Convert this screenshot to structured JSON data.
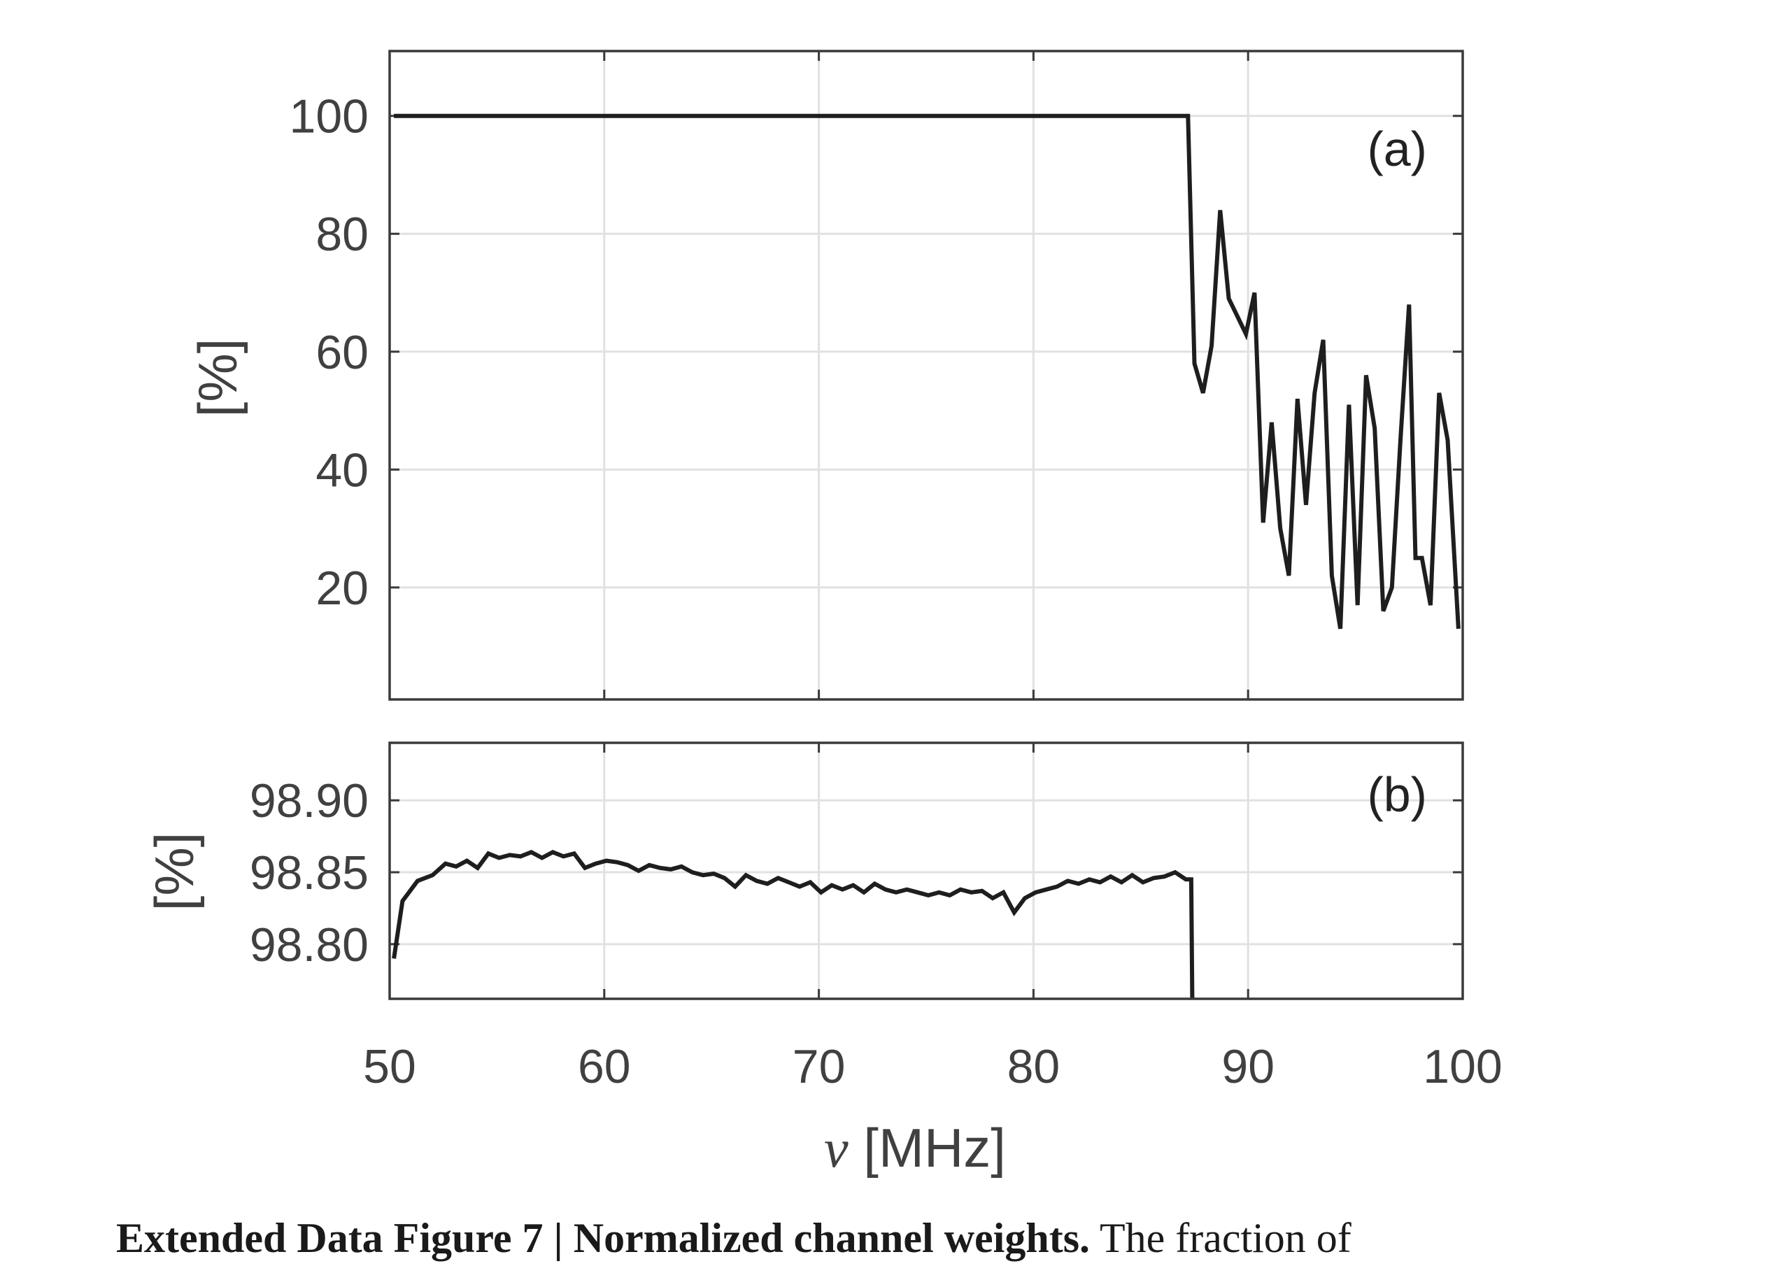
{
  "chart_data": [
    {
      "type": "line",
      "panel_label": "(a)",
      "ylabel": "[%]",
      "xlim": [
        50,
        100
      ],
      "ylim": [
        1,
        111
      ],
      "yticks": [
        20,
        40,
        60,
        80,
        100
      ],
      "grid": true,
      "x": [
        50.2,
        60,
        70,
        80,
        87.2,
        87.5,
        87.9,
        88.3,
        88.7,
        89.1,
        89.5,
        89.9,
        90.3,
        90.7,
        91.1,
        91.5,
        91.9,
        92.3,
        92.7,
        93.1,
        93.5,
        93.9,
        94.3,
        94.7,
        95.1,
        95.5,
        95.9,
        96.3,
        96.7,
        97.1,
        97.5,
        97.8,
        98.1,
        98.5,
        98.9,
        99.3,
        99.8
      ],
      "y": [
        100,
        100,
        100,
        100,
        100,
        58,
        53,
        61,
        84,
        69,
        66,
        63,
        70,
        31,
        48,
        30,
        22,
        52,
        34,
        53,
        62,
        22,
        13,
        51,
        17,
        56,
        47,
        16,
        20,
        45,
        68,
        25,
        25,
        17,
        53,
        45,
        13
      ]
    },
    {
      "type": "line",
      "panel_label": "(b)",
      "ylabel": "[%]",
      "xlabel_symbol": "ν",
      "xlabel": "[MHz]",
      "xlim": [
        50,
        100
      ],
      "ylim": [
        98.762,
        98.94
      ],
      "yticks": [
        "98.80",
        "98.85",
        "98.90"
      ],
      "xticks": [
        50,
        60,
        70,
        80,
        90,
        100
      ],
      "grid": true,
      "x": [
        50.2,
        50.6,
        51.3,
        52.0,
        52.6,
        53.1,
        53.6,
        54.1,
        54.6,
        55.1,
        55.6,
        56.1,
        56.6,
        57.1,
        57.6,
        58.1,
        58.6,
        59.1,
        59.6,
        60.1,
        60.6,
        61.1,
        61.6,
        62.1,
        62.6,
        63.1,
        63.6,
        64.1,
        64.6,
        65.1,
        65.6,
        66.1,
        66.6,
        67.1,
        67.6,
        68.1,
        68.6,
        69.1,
        69.6,
        70.1,
        70.6,
        71.1,
        71.6,
        72.1,
        72.6,
        73.1,
        73.6,
        74.1,
        74.6,
        75.1,
        75.6,
        76.1,
        76.6,
        77.1,
        77.6,
        78.1,
        78.6,
        79.1,
        79.6,
        80.1,
        80.6,
        81.1,
        81.6,
        82.1,
        82.6,
        83.1,
        83.6,
        84.1,
        84.6,
        85.1,
        85.6,
        86.1,
        86.6,
        87.1,
        87.35,
        87.4
      ],
      "y": [
        98.79,
        98.83,
        98.844,
        98.848,
        98.856,
        98.854,
        98.858,
        98.853,
        98.863,
        98.86,
        98.862,
        98.861,
        98.864,
        98.86,
        98.864,
        98.861,
        98.863,
        98.853,
        98.856,
        98.858,
        98.857,
        98.855,
        98.851,
        98.855,
        98.853,
        98.852,
        98.854,
        98.85,
        98.848,
        98.849,
        98.846,
        98.84,
        98.848,
        98.844,
        98.842,
        98.846,
        98.843,
        98.84,
        98.843,
        98.836,
        98.841,
        98.838,
        98.841,
        98.836,
        98.842,
        98.838,
        98.836,
        98.838,
        98.836,
        98.834,
        98.836,
        98.834,
        98.838,
        98.836,
        98.837,
        98.832,
        98.836,
        98.822,
        98.832,
        98.836,
        98.838,
        98.84,
        98.844,
        98.842,
        98.845,
        98.843,
        98.847,
        98.843,
        98.848,
        98.843,
        98.846,
        98.847,
        98.85,
        98.845,
        98.845,
        98.762
      ]
    }
  ],
  "caption": {
    "bold_text": "Extended Data Figure 7 | Normalized channel weights.",
    "text": " The fraction of"
  },
  "colors": {
    "line": "#1e1e1e",
    "frame": "#3a3a3a",
    "grid": "#e1e1e1",
    "tick_text": "#404040"
  }
}
